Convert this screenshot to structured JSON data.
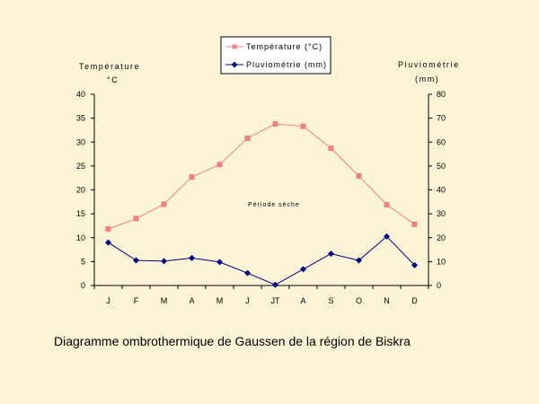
{
  "chart_data": {
    "type": "line",
    "title": "",
    "caption": "Diagramme ombrothermique de Gaussen de la région de Biskra",
    "categories": [
      "J",
      "F",
      "M",
      "A",
      "M",
      "J",
      "JT",
      "A",
      "S",
      "O",
      "N",
      "D"
    ],
    "y_left": {
      "label_line1": "Température",
      "label_line2": "°C",
      "range": [
        0,
        40
      ],
      "ticks": [
        "0",
        "5",
        "10",
        "15",
        "20",
        "25",
        "30",
        "35",
        "40"
      ]
    },
    "y_right": {
      "label_line1": "Pluviométrie",
      "label_line2": "(mm)",
      "range": [
        0,
        80
      ],
      "ticks": [
        "0",
        "10",
        "20",
        "30",
        "40",
        "50",
        "60",
        "70",
        "80"
      ]
    },
    "series": [
      {
        "name": "Température (°C)",
        "axis": "left",
        "color": "#f08080",
        "marker": "square",
        "values": [
          11.8,
          14.0,
          17.0,
          22.7,
          25.3,
          30.8,
          33.8,
          33.3,
          28.7,
          22.9,
          16.9,
          12.8
        ]
      },
      {
        "name": "Pluviométrie (mm)",
        "axis": "right",
        "color": "#000080",
        "marker": "diamond",
        "values": [
          18,
          10.5,
          10.2,
          11.5,
          9.8,
          5.2,
          0.3,
          6.8,
          13.3,
          10.5,
          20.5,
          8.5
        ]
      }
    ],
    "annotation": "Période sèche",
    "legend_position": "top-center",
    "grid": false
  }
}
